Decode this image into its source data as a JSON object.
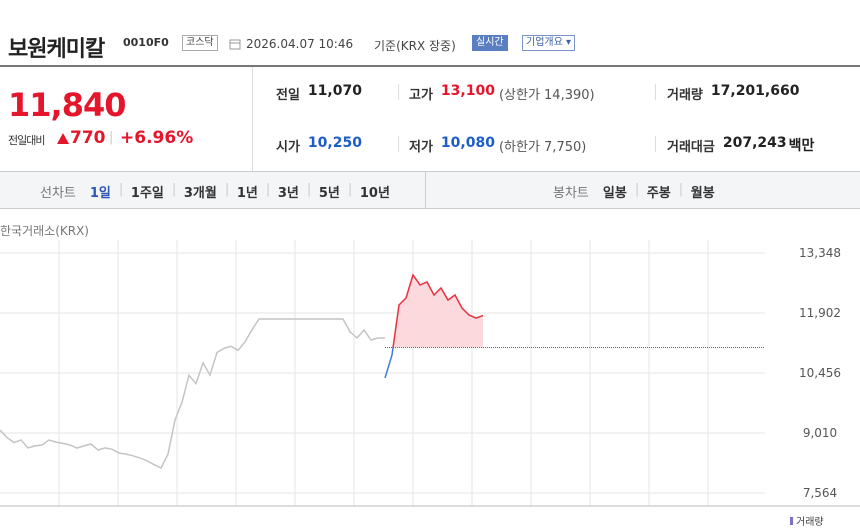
{
  "header": {
    "name": "보원케미칼",
    "code": "0010F0",
    "market": "코스닥",
    "datetime": "2026.04.07 10:46",
    "basis": "기준(KRX 장중)",
    "realtime": "실시간",
    "overview": "기업개요"
  },
  "price": {
    "current": "11,840",
    "change_label": "전일대비",
    "change": "770",
    "change_rate": "+6.96%"
  },
  "stats": [
    {
      "label": "전일",
      "value": "11,070"
    },
    {
      "label": "고가",
      "value": "13,100",
      "note": "(상한가 14,390)"
    },
    {
      "label": "거래량",
      "value": "17,201,660"
    },
    {
      "label": "시가",
      "value": "10,250"
    },
    {
      "label": "저가",
      "value": "10,080",
      "note": "(하한가 7,750)"
    },
    {
      "label": "거래대금",
      "value": "207,243",
      "unit": "백만"
    }
  ],
  "tabs": {
    "line_label": "선차트",
    "line_periods": [
      "1일",
      "1주일",
      "3개월",
      "1년",
      "3년",
      "5년",
      "10년"
    ],
    "selected": 0,
    "candle_label": "봉차트",
    "candle_periods": [
      "일봉",
      "주봉",
      "월봉"
    ]
  },
  "chart_data": {
    "type": "line",
    "source": "한국거래소(KRX)",
    "volume_label": "거래량",
    "baseline": 11070,
    "ylim": [
      7564,
      13348
    ],
    "yticks": [
      {
        "value": 7564,
        "label": "7,564"
      },
      {
        "value": 9010,
        "label": "9,010"
      },
      {
        "value": 10456,
        "label": "10,456"
      },
      {
        "value": 11902,
        "label": "11,902"
      },
      {
        "value": 13348,
        "label": "13,348"
      }
    ],
    "grid": true,
    "series": [
      {
        "color": "#c4c4c4",
        "values": [
          9082,
          8900,
          8780,
          8841,
          8650,
          8700,
          8721,
          8841,
          8790,
          8760,
          8721,
          8648,
          8700,
          8745,
          8600,
          8650,
          8620,
          8528,
          8500,
          8460,
          8407,
          8340,
          8250,
          8166,
          8500,
          9323,
          9750,
          10400,
          10200,
          10700,
          10408,
          10950,
          11050,
          11100,
          11000,
          11203,
          11500,
          11757,
          11757,
          11757,
          11757,
          11757,
          11757,
          11757,
          11757,
          11757,
          11757,
          11757,
          11757,
          11757,
          11450,
          11300,
          11492,
          11251,
          11300,
          11300,
          null,
          null,
          null,
          null,
          null,
          null,
          null,
          null,
          null,
          null,
          null,
          null,
          null,
          null
        ]
      },
      {
        "color": "#e8313f",
        "color_below": "#3e7dd6",
        "fill": "#fcd9dc",
        "values": [
          null,
          null,
          null,
          null,
          null,
          null,
          null,
          null,
          null,
          null,
          null,
          null,
          null,
          null,
          null,
          null,
          null,
          null,
          null,
          null,
          null,
          null,
          null,
          null,
          null,
          null,
          null,
          null,
          null,
          null,
          null,
          null,
          null,
          null,
          null,
          null,
          null,
          null,
          null,
          null,
          null,
          null,
          null,
          null,
          null,
          null,
          null,
          null,
          null,
          null,
          null,
          null,
          null,
          null,
          null,
          10336,
          10890,
          12095,
          12264,
          12818,
          12577,
          12650,
          12336,
          12505,
          12215,
          12336,
          12022,
          11854,
          11781,
          11840
        ]
      }
    ]
  }
}
